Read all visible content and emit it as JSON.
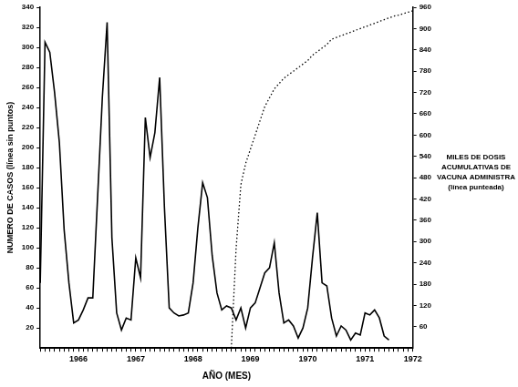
{
  "chart_data": {
    "type": "line",
    "x_label": "AÑO (MES)",
    "y_label": "NUMERO DE CASOS (línea sin puntos)",
    "y2_label": [
      "MILES DE DOSIS",
      "ACUMULATIVAS DE",
      "VACUNA ADMINISTRA",
      "(línea punteada)"
    ],
    "categories": [
      null,
      null,
      null,
      null,
      null,
      null,
      null,
      null,
      "1966",
      null,
      null,
      null,
      null,
      null,
      null,
      null,
      null,
      null,
      null,
      null,
      "1967",
      null,
      null,
      null,
      null,
      null,
      null,
      null,
      null,
      null,
      null,
      null,
      "1968",
      null,
      null,
      null,
      null,
      null,
      null,
      null,
      null,
      null,
      null,
      null,
      "1969",
      null,
      null,
      null,
      null,
      null,
      null,
      null,
      null,
      null,
      null,
      null,
      "1970",
      null,
      null,
      null,
      null,
      null,
      null,
      null,
      null,
      null,
      null,
      null,
      "1971",
      null,
      null,
      null,
      null,
      null,
      null,
      null,
      null,
      null,
      "1972"
    ],
    "series": [
      {
        "color": "#000000",
        "line_style": "solid",
        "values": [
          65,
          305,
          295,
          255,
          205,
          118,
          65,
          25,
          28,
          38,
          50,
          50,
          150,
          250,
          325,
          110,
          35,
          18,
          30,
          28,
          90,
          70,
          230,
          190,
          215,
          270,
          140,
          40,
          35,
          32,
          33,
          35,
          65,
          120,
          165,
          150,
          92,
          55,
          38,
          42,
          40,
          28,
          40,
          20,
          40,
          45,
          60,
          75,
          80,
          105,
          55,
          25,
          28,
          22,
          10,
          20,
          40,
          90,
          135,
          65,
          62,
          30,
          12,
          22,
          18,
          8,
          15,
          13,
          35,
          33,
          38,
          30,
          12,
          8,
          null,
          null,
          null,
          null,
          null
        ]
      },
      {
        "color": "#000000",
        "line_style": "dotted",
        "axis": "y2",
        "values": [
          null,
          null,
          null,
          null,
          null,
          null,
          null,
          null,
          null,
          null,
          null,
          null,
          null,
          null,
          null,
          null,
          null,
          null,
          null,
          null,
          null,
          null,
          null,
          null,
          null,
          null,
          null,
          null,
          null,
          null,
          null,
          null,
          null,
          null,
          null,
          null,
          null,
          null,
          null,
          null,
          0,
          280,
          460,
          520,
          560,
          600,
          640,
          680,
          705,
          730,
          745,
          760,
          770,
          780,
          790,
          800,
          810,
          825,
          835,
          845,
          855,
          870,
          875,
          880,
          885,
          890,
          895,
          900,
          905,
          910,
          915,
          920,
          925,
          930,
          935,
          938,
          942,
          946,
          950
        ]
      }
    ],
    "ylim": [
      0,
      340
    ],
    "yticks": [
      20,
      40,
      60,
      80,
      100,
      120,
      140,
      160,
      180,
      200,
      220,
      240,
      260,
      280,
      300,
      320,
      340
    ],
    "y2lim": [
      0,
      960
    ],
    "y2ticks": [
      60,
      120,
      180,
      240,
      300,
      360,
      420,
      480,
      540,
      600,
      660,
      720,
      780,
      840,
      900,
      960
    ],
    "grid": false
  }
}
